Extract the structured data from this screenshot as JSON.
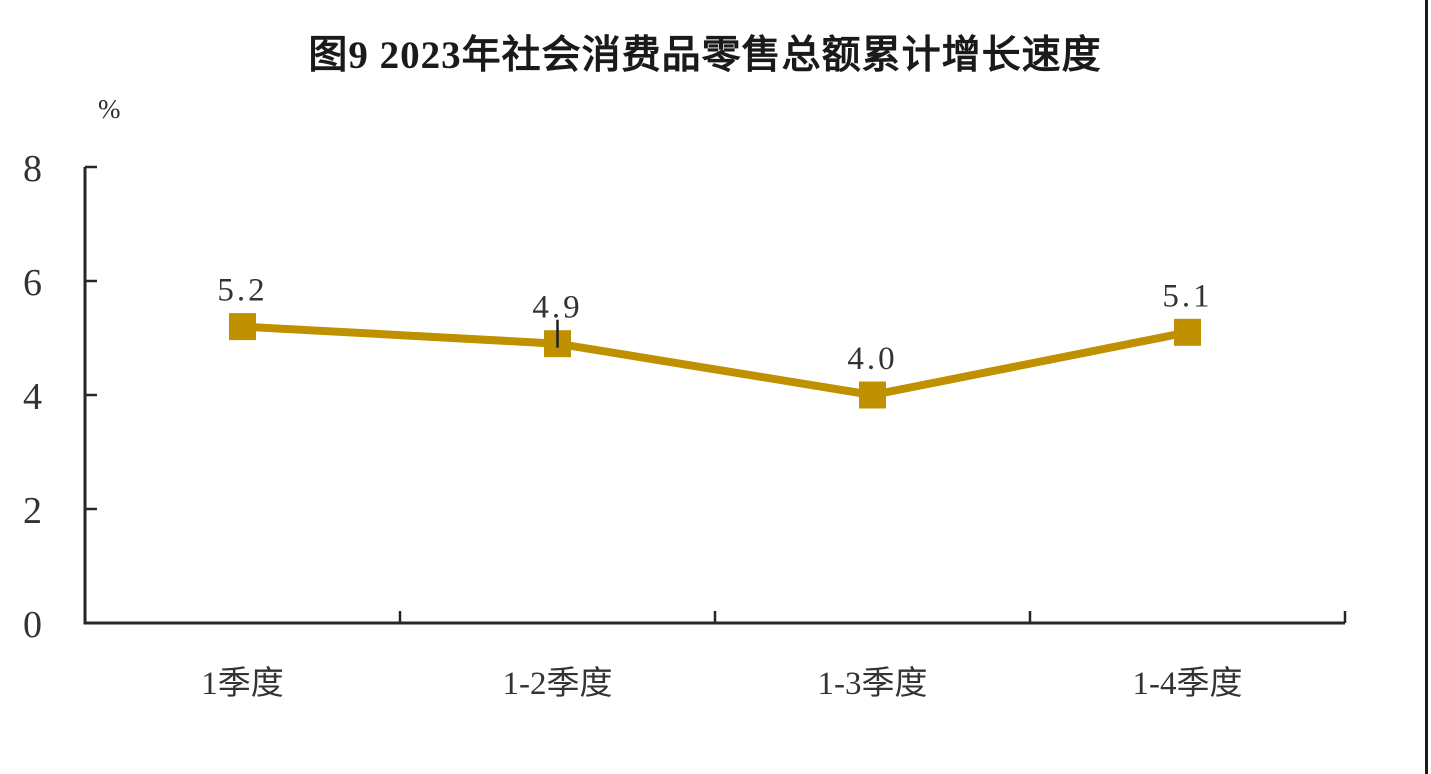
{
  "page": {
    "background": "#ffffff",
    "right_border_color": "#1a1a1a"
  },
  "chart_data": {
    "type": "line",
    "title": "图9 2023年社会消费品零售总额累计增长速度",
    "unit_label": "%",
    "categories": [
      "1季度",
      "1-2季度",
      "1-3季度",
      "1-4季度"
    ],
    "values": [
      5.2,
      4.9,
      4.0,
      5.1
    ],
    "data_labels": [
      "5.2",
      "4.9",
      "4.0",
      "5.1"
    ],
    "ylim": [
      0,
      8
    ],
    "yticks": [
      0,
      2,
      4,
      6,
      8
    ],
    "grid": false,
    "legend": "none",
    "marker_shape": "square",
    "line_color": "#BF9000",
    "axis_color": "#262626",
    "text_color": "#333333",
    "leader_line_color": "#202020",
    "label_leader_index": 1
  }
}
